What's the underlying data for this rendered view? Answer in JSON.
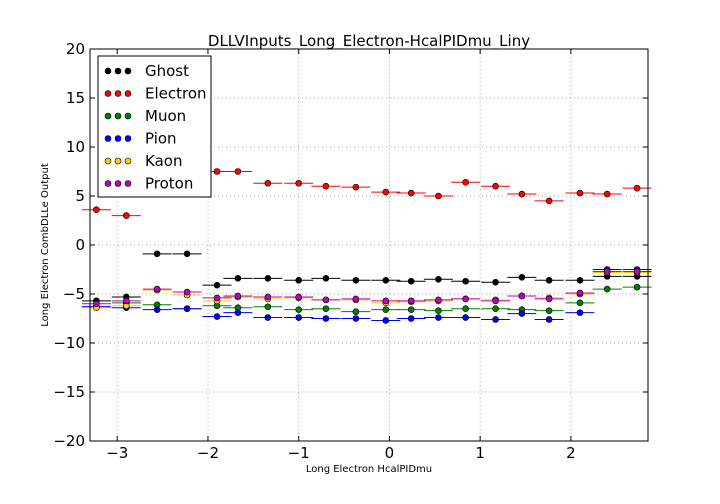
{
  "chart_data": {
    "type": "scatter",
    "title": "DLLVInputs_Long_Electron-HcalPIDmu_Liny",
    "xlabel": "Long Electron HcalPIDmu",
    "ylabel": "Long Electron CombDLLe Output",
    "xlim": [
      -3.3,
      2.85
    ],
    "ylim": [
      -20,
      20
    ],
    "x_ticks": [
      -3,
      -2,
      -1,
      0,
      1,
      2
    ],
    "x_tick_labels": [
      "−3",
      "−2",
      "−1",
      "0",
      "1",
      "2"
    ],
    "y_ticks": [
      -20,
      -15,
      -10,
      -5,
      0,
      5,
      10,
      15,
      20
    ],
    "y_tick_labels": [
      "−20",
      "−15",
      "−10",
      "−5",
      "0",
      "5",
      "10",
      "15",
      "20"
    ],
    "grid": true,
    "legend_position": "upper-left",
    "bin_centers": [
      -3.23,
      -2.9,
      -2.56,
      -2.23,
      -1.9,
      -1.67,
      -1.34,
      -1.0,
      -0.7,
      -0.37,
      -0.04,
      0.24,
      0.54,
      0.84,
      1.17,
      1.46,
      1.76,
      2.1,
      2.4,
      2.73
    ],
    "bin_half_width": 0.16,
    "series": [
      {
        "name": "Ghost",
        "color": "#000000",
        "values": [
          -5.7,
          -5.3,
          -0.9,
          -0.9,
          -4.1,
          -3.4,
          -3.4,
          -3.6,
          -3.4,
          -3.6,
          -3.6,
          -3.7,
          -3.5,
          -3.7,
          -3.8,
          -3.3,
          -3.6,
          -3.6,
          -3.2,
          -3.2
        ]
      },
      {
        "name": "Electron",
        "color": "#ff0000",
        "values": [
          3.6,
          3.0,
          7.6,
          7.4,
          7.5,
          7.5,
          6.3,
          6.3,
          6.0,
          5.9,
          5.4,
          5.3,
          5.0,
          6.4,
          6.0,
          5.2,
          4.5,
          5.3,
          5.2,
          5.8
        ]
      },
      {
        "name": "Muon",
        "color": "#008000",
        "values": [
          -6.3,
          -5.9,
          -6.1,
          -6.5,
          -6.2,
          -6.4,
          -6.3,
          -6.6,
          -6.5,
          -6.8,
          -6.6,
          -6.6,
          -6.7,
          -6.5,
          -6.5,
          -6.6,
          -6.7,
          -5.9,
          -4.5,
          -4.3
        ]
      },
      {
        "name": "Pion",
        "color": "#0000ff",
        "values": [
          -6.3,
          -6.4,
          -6.6,
          -6.5,
          -7.3,
          -6.9,
          -7.4,
          -7.4,
          -7.5,
          -7.5,
          -7.7,
          -7.5,
          -7.4,
          -7.4,
          -7.6,
          -7.0,
          -7.6,
          -6.9,
          -2.5,
          -2.5
        ]
      },
      {
        "name": "Kaon",
        "color": "#ffcc00",
        "values": [
          -6.4,
          -6.2,
          -4.6,
          -5.1,
          -5.7,
          -5.3,
          -5.5,
          -5.4,
          -5.6,
          -5.6,
          -5.9,
          -5.8,
          -5.7,
          -5.5,
          -5.6,
          -5.2,
          -5.4,
          -5.0,
          -2.8,
          -2.8
        ]
      },
      {
        "name": "Proton",
        "color": "#bf00bf",
        "values": [
          -6.0,
          -5.7,
          -4.5,
          -4.8,
          -5.4,
          -5.2,
          -5.3,
          -5.3,
          -5.6,
          -5.5,
          -5.7,
          -5.7,
          -5.6,
          -5.5,
          -5.7,
          -5.2,
          -5.5,
          -4.9,
          -2.7,
          -2.7
        ]
      }
    ]
  }
}
